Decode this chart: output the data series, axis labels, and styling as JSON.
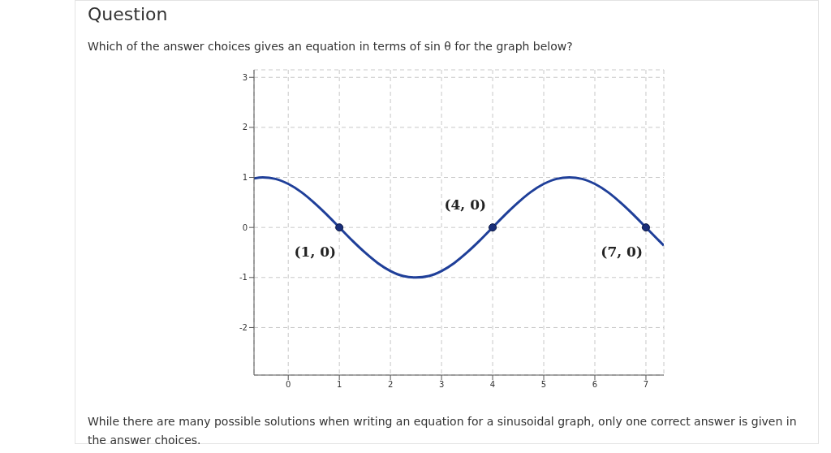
{
  "chart_data": {
    "type": "line",
    "title": "Question",
    "subtitle": "Which of the answer choices gives an equation in terms of sin θ for the graph below?",
    "xlim": [
      -0.67,
      7.35
    ],
    "ylim": [
      -2.95,
      3.15
    ],
    "xticks": [
      0,
      1,
      2,
      3,
      4,
      5,
      6,
      7
    ],
    "yticks": [
      -2,
      -1,
      0,
      1,
      2,
      3
    ],
    "grid": true,
    "series": [
      {
        "color": "#1f3f99",
        "marker": "none",
        "x": [
          -0.67,
          -0.5,
          -0.25,
          0,
          0.25,
          0.5,
          0.75,
          1,
          1.25,
          1.5,
          1.75,
          2,
          2.25,
          2.5,
          2.75,
          3,
          3.25,
          3.5,
          3.75,
          4,
          4.25,
          4.5,
          4.75,
          5,
          5.25,
          5.5,
          5.75,
          6,
          6.25,
          6.5,
          6.75,
          7,
          7.25,
          7.35
        ],
        "values": [
          0.98,
          1,
          0.97,
          0.87,
          0.71,
          0.5,
          0.26,
          0,
          -0.26,
          -0.5,
          -0.71,
          -0.87,
          -0.97,
          -1,
          -0.97,
          -0.87,
          -0.71,
          -0.5,
          -0.26,
          0,
          0.26,
          0.5,
          0.71,
          0.87,
          0.97,
          1,
          0.97,
          0.87,
          0.71,
          0.5,
          0.26,
          0,
          -0.26,
          -0.36
        ]
      },
      {
        "type": "scatter",
        "color": "#1a2f7a",
        "marker": "circle",
        "x": [
          1,
          4,
          7
        ],
        "values": [
          0,
          0,
          0
        ]
      }
    ],
    "annotations": [
      {
        "text": "(1, 0)",
        "x": 1,
        "y": 0
      },
      {
        "text": "(4, 0)",
        "x": 4,
        "y": 0
      },
      {
        "text": "(7, 0)",
        "x": 7,
        "y": 0
      },
      "While there are many possible solutions when writing an equation for a sinusoidal graph, only one correct answer is given in the answer choices."
    ]
  }
}
